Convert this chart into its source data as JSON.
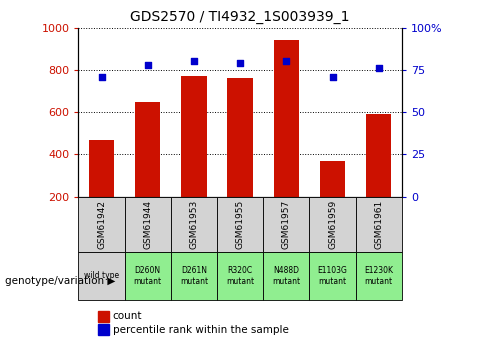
{
  "title": "GDS2570 / TI4932_1S003939_1",
  "samples": [
    "GSM61942",
    "GSM61944",
    "GSM61953",
    "GSM61955",
    "GSM61957",
    "GSM61959",
    "GSM61961"
  ],
  "genotypes": [
    "wild type",
    "D260N\nmutant",
    "D261N\nmutant",
    "R320C\nmutant",
    "N488D\nmutant",
    "E1103G\nmutant",
    "E1230K\nmutant"
  ],
  "counts": [
    470,
    648,
    770,
    760,
    940,
    367,
    590
  ],
  "percentiles": [
    71,
    78,
    80,
    79,
    80,
    71,
    76
  ],
  "bar_color": "#cc1100",
  "dot_color": "#0000cc",
  "ylim_left": [
    200,
    1000
  ],
  "ylim_right": [
    0,
    100
  ],
  "yticks_left": [
    200,
    400,
    600,
    800,
    1000
  ],
  "yticks_right": [
    0,
    25,
    50,
    75,
    100
  ],
  "yticklabels_right": [
    "0",
    "25",
    "50",
    "75",
    "100%"
  ],
  "grid_color": "black",
  "background_color": "#ffffff",
  "sample_box_color": "#d3d3d3",
  "genotype_wt_color": "#d3d3d3",
  "genotype_mutant_color": "#90ee90",
  "legend_count_color": "#cc1100",
  "legend_dot_color": "#0000cc",
  "legend_count_label": "count",
  "legend_percentile_label": "percentile rank within the sample",
  "genotype_label": "genotype/variation"
}
